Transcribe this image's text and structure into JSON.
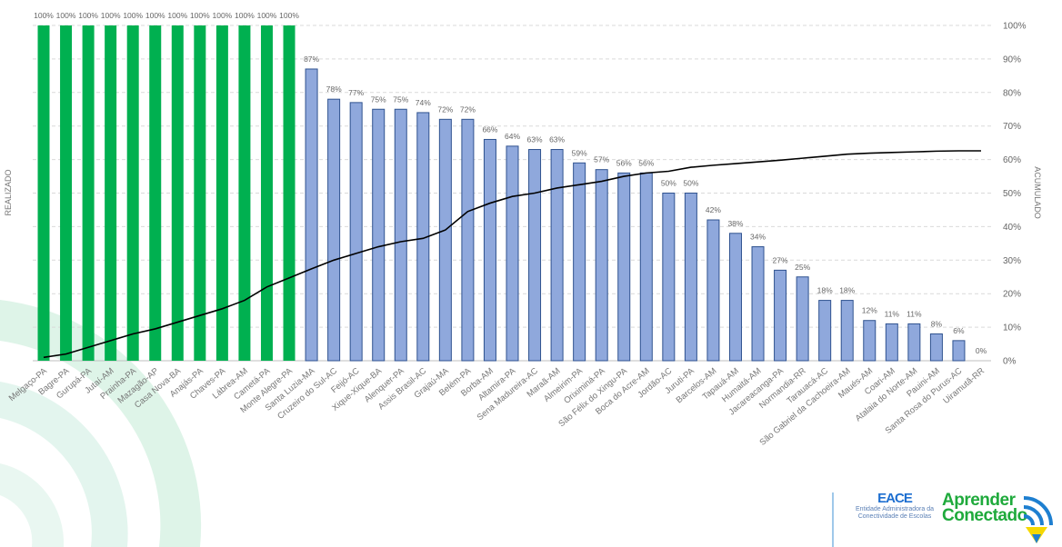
{
  "chart_data": {
    "type": "bar+line",
    "categories": [
      "Melgaço-PA",
      "Bagre-PA",
      "Gurupá-PA",
      "Jutaí-AM",
      "Prainha-PA",
      "Mazagão-AP",
      "Casa Nova-BA",
      "Anajás-PA",
      "Chaves-PA",
      "Lábrea-AM",
      "Cametá-PA",
      "Monte Alegre-PA",
      "Santa Luzia-MA",
      "Cruzeiro do Sul-AC",
      "Feijó-AC",
      "Xique-Xique-BA",
      "Alenquer-PA",
      "Assis Brasil-AC",
      "Grajaú-MA",
      "Belém-PA",
      "Borba-AM",
      "Altamira-PA",
      "Sena Madureira-AC",
      "Maraã-AM",
      "Almeirim-PA",
      "Oriximiná-PA",
      "São Félix do Xingu-PA",
      "Boca do Acre-AM",
      "Jordão-AC",
      "Juruti-PA",
      "Barcelos-AM",
      "Tapauá-AM",
      "Humaitá-AM",
      "Jacareacanga-PA",
      "Normandia-RR",
      "Tarauacá-AC",
      "São Gabriel da Cachoeira-AM",
      "Maués-AM",
      "Coari-AM",
      "Atalaia do Norte-AM",
      "Pauini-AM",
      "Santa Rosa do Purus-AC",
      "Uiramutã-RR"
    ],
    "series": [
      {
        "values": [
          100,
          100,
          100,
          100,
          100,
          100,
          100,
          100,
          100,
          100,
          100,
          100,
          87,
          78,
          77,
          75,
          75,
          74,
          72,
          72,
          66,
          64,
          63,
          63,
          59,
          57,
          56,
          56,
          50,
          50,
          42,
          38,
          34,
          27,
          25,
          18,
          18,
          12,
          11,
          11,
          8,
          6,
          0
        ]
      },
      {
        "values": [
          1,
          2,
          4,
          6,
          8,
          9.5,
          11.5,
          13.5,
          15.5,
          18,
          22,
          24.7,
          27.4,
          30,
          32,
          34,
          35.5,
          36.5,
          39,
          44.5,
          47,
          49,
          50,
          51.5,
          52.5,
          53.5,
          55,
          56,
          56.5,
          57.7,
          58.3,
          58.8,
          59.3,
          59.8,
          60.4,
          61,
          61.6,
          61.9,
          62.1,
          62.3,
          62.5,
          62.6,
          62.6
        ]
      }
    ],
    "data_labels": [
      "100%",
      "100%",
      "100%",
      "100%",
      "100%",
      "100%",
      "100%",
      "100%",
      "100%",
      "100%",
      "100%",
      "100%",
      "87%",
      "78%",
      "77%",
      "75%",
      "75%",
      "74%",
      "72%",
      "72%",
      "66%",
      "64%",
      "63%",
      "63%",
      "59%",
      "57%",
      "56%",
      "56%",
      "50%",
      "50%",
      "42%",
      "38%",
      "34%",
      "27%",
      "25%",
      "18%",
      "18%",
      "12%",
      "11%",
      "11%",
      "8%",
      "6%",
      "0%"
    ],
    "ylabel_left": "REALIZADO",
    "ylabel_right": "ACUMULADO",
    "yticks_right": [
      "0%",
      "10%",
      "20%",
      "30%",
      "40%",
      "50%",
      "60%",
      "70%",
      "80%",
      "90%",
      "100%"
    ],
    "ylim": [
      0,
      100
    ],
    "grid": true,
    "colors": {
      "complete": "#00b050",
      "partial": "#8fa8dc",
      "partial_border": "#2f528f",
      "line": "#000000",
      "grid": "#d9d9d9"
    }
  },
  "logos": {
    "eace_title": "EACE",
    "eace_line1": "Entidade Administradora da",
    "eace_line2": "Conectividade de Escolas",
    "aprender_line1": "Aprender",
    "aprender_line2": "Conectado"
  }
}
